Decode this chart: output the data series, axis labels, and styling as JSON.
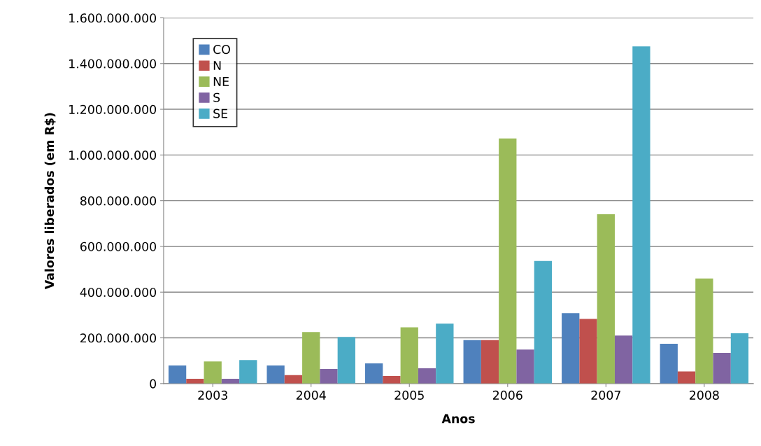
{
  "chart_data": {
    "type": "bar",
    "xlabel": "Anos",
    "ylabel": "Valores liberados (em R$)",
    "categories": [
      "2003",
      "2004",
      "2005",
      "2006",
      "2007",
      "2008"
    ],
    "series": [
      {
        "name": "CO",
        "color": "#4f81bd",
        "values": [
          79000000,
          79000000,
          88000000,
          190000000,
          308000000,
          174000000
        ]
      },
      {
        "name": "N",
        "color": "#c0504d",
        "values": [
          21000000,
          37000000,
          33000000,
          190000000,
          283000000,
          53000000
        ]
      },
      {
        "name": "NE",
        "color": "#9bbb59",
        "values": [
          97000000,
          225000000,
          246000000,
          1072000000,
          741000000,
          460000000
        ]
      },
      {
        "name": "S",
        "color": "#8064a2",
        "values": [
          21000000,
          64000000,
          67000000,
          149000000,
          210000000,
          134000000
        ]
      },
      {
        "name": "SE",
        "color": "#4bacc6",
        "values": [
          103000000,
          204000000,
          262000000,
          536000000,
          1475000000,
          220000000
        ]
      }
    ],
    "ylim": [
      0,
      1600000000
    ],
    "yticks": [
      {
        "value": 0,
        "label": "0"
      },
      {
        "value": 200000000,
        "label": "200.000.000"
      },
      {
        "value": 400000000,
        "label": "400.000.000"
      },
      {
        "value": 600000000,
        "label": "600.000.000"
      },
      {
        "value": 800000000,
        "label": "800.000.000"
      },
      {
        "value": 1000000000,
        "label": "1.000.000.000"
      },
      {
        "value": 1200000000,
        "label": "1.200.000.000"
      },
      {
        "value": 1400000000,
        "label": "1.400.000.000"
      },
      {
        "value": 1600000000,
        "label": "1.600.000.000"
      }
    ],
    "grid": "y",
    "legend": "top left"
  }
}
